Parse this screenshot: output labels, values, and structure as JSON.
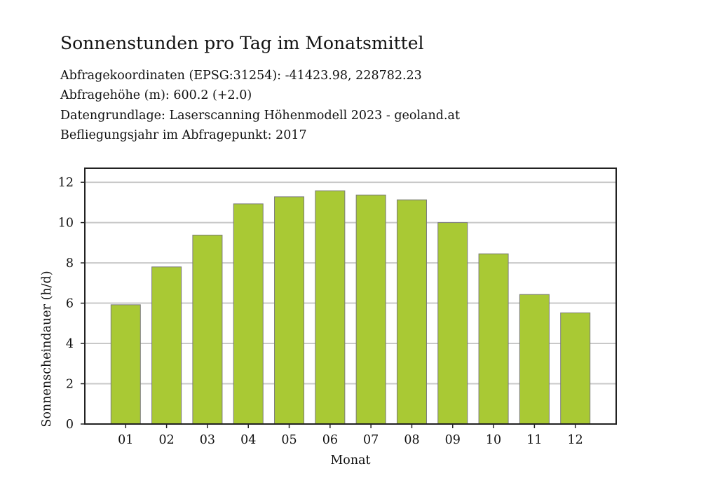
{
  "header": {
    "title": "Sonnenstunden pro Tag im Monatsmittel",
    "info_lines": [
      "Abfragekoordinaten (EPSG:31254): -41423.98, 228782.23",
      "Abfragehöhe (m): 600.2 (+2.0)",
      "Datengrundlage: Laserscanning Höhenmodell 2023 - geoland.at",
      "Befliegungsjahr im Abfragepunkt: 2017"
    ]
  },
  "chart_data": {
    "type": "bar",
    "title": "Sonnenstunden pro Tag im Monatsmittel",
    "xlabel": "Monat",
    "ylabel": "Sonnenscheindauer (h/d)",
    "categories": [
      "01",
      "02",
      "03",
      "04",
      "05",
      "06",
      "07",
      "08",
      "09",
      "10",
      "11",
      "12"
    ],
    "values": [
      5.92,
      7.8,
      9.38,
      10.93,
      11.28,
      11.58,
      11.37,
      11.13,
      10.0,
      8.45,
      6.43,
      5.52
    ],
    "ylim": [
      0,
      12.7
    ],
    "yticks": [
      0,
      2,
      4,
      6,
      8,
      10,
      12
    ],
    "grid": true,
    "legend": "none",
    "colors": {
      "bar_fill": "#a9c934",
      "bar_stroke": "#7a7a7a",
      "grid": "#c8c8c8",
      "frame": "#222222"
    }
  }
}
